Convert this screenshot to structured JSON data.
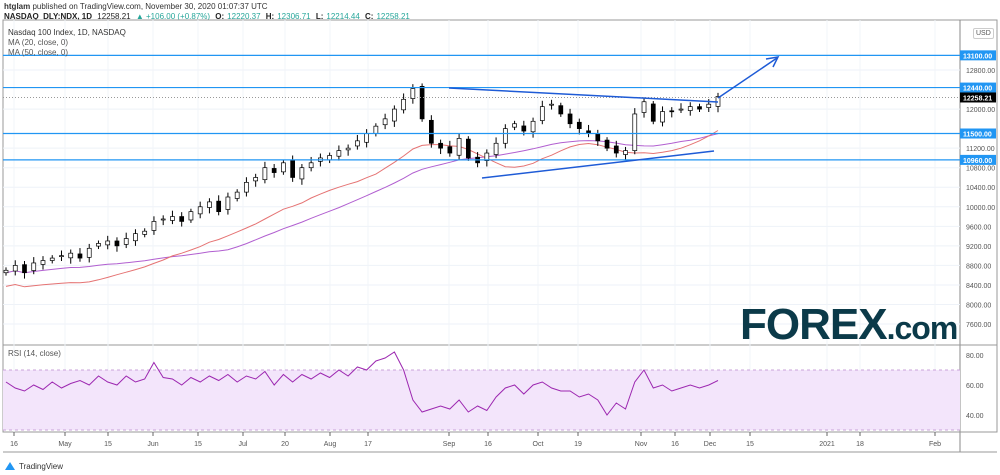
{
  "header": {
    "publisher": "htglam",
    "published_text": "published on TradingView.com, November 30, 2020 01:07:37 UTC",
    "symbol": "NASDAQ_DLY:NDX, 1D",
    "last": "12258.21",
    "change": "▲ +106.00 (+0.87%)",
    "o_label": "O:",
    "o": "12220.37",
    "h_label": "H:",
    "h": "12306.71",
    "l_label": "L:",
    "l": "12214.44",
    "c_label": "C:",
    "c": "12258.21"
  },
  "legend": {
    "title": "Nasdaq 100 Index, 1D, NASDAQ",
    "ma20": "MA (20, close, 0)",
    "ma50": "MA (50, close, 0)",
    "rsi": "RSI (14, close)"
  },
  "currency": "USD",
  "footer": {
    "brand": "TradingView"
  },
  "logo": {
    "text": "FOREX.com"
  },
  "colors": {
    "ma20": "#e57373",
    "ma50": "#b15fd0",
    "lines": "#1e5bd6",
    "level": "#2196f3",
    "rsi": "#9c27b0",
    "rsi_band": "#f3e5fb"
  },
  "chart_data": {
    "type": "candlestick",
    "title": "Nasdaq 100 Index, 1D, NASDAQ",
    "ylim": [
      7300,
      13300
    ],
    "yticks": [
      7600,
      8000,
      8400,
      8800,
      9200,
      9600,
      10000,
      10400,
      10800,
      11200,
      12000,
      12800
    ],
    "level_labels": [
      "13100.00",
      "12440.00",
      "12258.21",
      "11500.00",
      "10960.00"
    ],
    "levels": [
      13100,
      12440,
      11500,
      10960
    ],
    "last_price": 12258.21,
    "xticks": [
      "16",
      "May",
      "15",
      "Jun",
      "15",
      "Jul",
      "20",
      "Aug",
      "17",
      "Sep",
      "16",
      "Oct",
      "19",
      "Nov",
      "16",
      "Dec",
      "15",
      "2021",
      "18",
      "Feb"
    ],
    "closes_every_2_days": [
      8700,
      8800,
      8650,
      8850,
      8900,
      8950,
      9000,
      9050,
      8950,
      9150,
      9250,
      9300,
      9200,
      9350,
      9450,
      9500,
      9700,
      9750,
      9800,
      9700,
      9900,
      10000,
      10100,
      9900,
      10200,
      10300,
      10500,
      10600,
      10800,
      10700,
      10900,
      10600,
      10800,
      10900,
      11000,
      11050,
      11150,
      11200,
      11350,
      11500,
      11650,
      11800,
      12000,
      12200,
      12420,
      11800,
      11300,
      11200,
      11100,
      11400,
      11000,
      10900,
      11100,
      11300,
      11600,
      11700,
      11550,
      11750,
      12050,
      12100,
      11900,
      11700,
      11600,
      11500,
      11350,
      11200,
      11100,
      11150,
      11900,
      12150,
      11750,
      11950,
      11950,
      12000,
      12050,
      12000,
      12100,
      12258
    ],
    "rsi_ylim": [
      25,
      85
    ],
    "rsi_yticks": [
      "80.00",
      "60.00",
      "40.00"
    ],
    "rsi_bands": [
      70,
      30
    ],
    "rsi_values": [
      62,
      58,
      56,
      60,
      57,
      62,
      58,
      61,
      63,
      60,
      66,
      62,
      60,
      66,
      62,
      64,
      75,
      65,
      64,
      60,
      65,
      62,
      66,
      63,
      67,
      62,
      66,
      64,
      69,
      60,
      67,
      62,
      67,
      64,
      68,
      65,
      70,
      66,
      72,
      70,
      76,
      78,
      82,
      70,
      50,
      42,
      44,
      46,
      44,
      50,
      42,
      46,
      43,
      52,
      58,
      60,
      54,
      60,
      62,
      58,
      56,
      56,
      52,
      54,
      50,
      40,
      48,
      44,
      62,
      70,
      58,
      60,
      56,
      58,
      60,
      58,
      60,
      63
    ],
    "trendlines": [
      {
        "name": "upper-resistance",
        "from": [
          {
            "date": "Sep 2"
          },
          12440
        ],
        "to": [
          {
            "date": "Nov 30"
          },
          12150
        ]
      },
      {
        "name": "lower-support",
        "from": [
          {
            "date": "Sep 14"
          },
          10580
        ],
        "to": [
          {
            "date": "Nov 30"
          },
          11150
        ]
      }
    ]
  }
}
